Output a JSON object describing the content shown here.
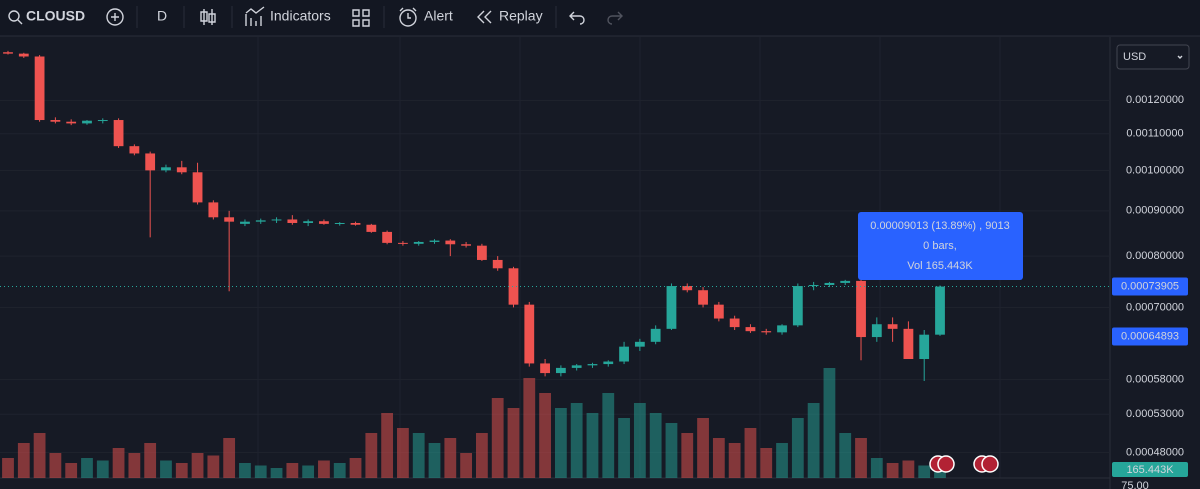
{
  "toolbar": {
    "symbol": "CLOUSD",
    "interval": "D",
    "indicators": "Indicators",
    "alert": "Alert",
    "replay": "Replay"
  },
  "currency": "USD",
  "chart": {
    "type": "candlestick",
    "log_scale": true,
    "ylim": [
      0.000449,
      0.001415
    ],
    "yticks": [
      {
        "value": 0.0012,
        "label": "0.00120000"
      },
      {
        "value": 0.0011,
        "label": "0.00110000"
      },
      {
        "value": 0.001,
        "label": "0.00100000"
      },
      {
        "value": 0.0009,
        "label": "0.00090000"
      },
      {
        "value": 0.0008,
        "label": "0.00080000"
      },
      {
        "value": 0.0007,
        "label": "0.00070000"
      },
      {
        "value": 0.00058,
        "label": "0.00058000"
      },
      {
        "value": 0.00053,
        "label": "0.00053000"
      },
      {
        "value": 0.00048,
        "label": "0.00048000"
      }
    ],
    "up_color": "#26a69a",
    "down_color": "#ef5350",
    "open": [
      0.00136,
      0.001355,
      0.001345,
      0.00114,
      0.001135,
      0.00113,
      0.001138,
      0.00114,
      0.001065,
      0.001045,
      0.001,
      0.001008,
      0.000995,
      0.00092,
      0.000885,
      0.00087,
      0.000875,
      0.000878,
      0.00088,
      0.000872,
      0.000876,
      0.00087,
      0.000872,
      0.000868,
      0.000852,
      0.000828,
      0.000826,
      0.00083,
      0.000833,
      0.000825,
      0.000822,
      0.000792,
      0.000775,
      0.000705,
      0.000605,
      0.00059,
      0.000598,
      0.000602,
      0.000604,
      0.000608,
      0.000632,
      0.00064,
      0.000662,
      0.00074,
      0.000732,
      0.000705,
      0.00068,
      0.000665,
      0.000658,
      0.000656,
      0.000668,
      0.00074,
      0.000742,
      0.000746,
      0.00075,
      0.000648,
      0.00067,
      0.000662,
      0.000612,
      0.000652
    ],
    "high": [
      0.001365,
      0.001358,
      0.00135,
      0.001148,
      0.001142,
      0.00114,
      0.001145,
      0.001145,
      0.00107,
      0.00105,
      0.001015,
      0.001025,
      0.00102,
      0.000925,
      0.0009,
      0.00088,
      0.000882,
      0.000885,
      0.00089,
      0.00088,
      0.00088,
      0.000874,
      0.000875,
      0.00087,
      0.000855,
      0.000832,
      0.000832,
      0.000836,
      0.000836,
      0.00083,
      0.000826,
      0.0008,
      0.000778,
      0.00071,
      0.000612,
      0.000602,
      0.000604,
      0.000606,
      0.00061,
      0.00064,
      0.000645,
      0.000668,
      0.000745,
      0.000745,
      0.000738,
      0.00071,
      0.000685,
      0.00067,
      0.000662,
      0.00067,
      0.000745,
      0.000748,
      0.000748,
      0.000752,
      0.000752,
      0.000682,
      0.000682,
      0.000675,
      0.00066,
      0.000741
    ],
    "low": [
      0.001352,
      0.00134,
      0.001135,
      0.00113,
      0.001125,
      0.001126,
      0.00113,
      0.00106,
      0.00104,
      0.00084,
      0.000995,
      0.00099,
      0.000915,
      0.00088,
      0.00073,
      0.000865,
      0.00087,
      0.000872,
      0.000868,
      0.000865,
      0.000868,
      0.000866,
      0.000866,
      0.00085,
      0.000825,
      0.000822,
      0.000822,
      0.000826,
      0.0008,
      0.000818,
      0.00079,
      0.00077,
      0.0007,
      0.0006,
      0.000585,
      0.000585,
      0.000594,
      0.000598,
      0.0006,
      0.000604,
      0.000625,
      0.000636,
      0.00066,
      0.000728,
      0.0007,
      0.000675,
      0.00066,
      0.000655,
      0.000652,
      0.000652,
      0.000665,
      0.000732,
      0.000738,
      0.000742,
      0.00061,
      0.00064,
      0.00064,
      0.000612,
      0.000578,
      0.00065
    ],
    "close": [
      0.001355,
      0.001345,
      0.00114,
      0.001135,
      0.00113,
      0.001138,
      0.00114,
      0.001065,
      0.001045,
      0.001,
      0.001008,
      0.000995,
      0.00092,
      0.000885,
      0.000875,
      0.000875,
      0.000878,
      0.00088,
      0.000872,
      0.000876,
      0.00087,
      0.000872,
      0.000868,
      0.000852,
      0.000828,
      0.000826,
      0.00083,
      0.000833,
      0.000825,
      0.000822,
      0.000792,
      0.000775,
      0.000705,
      0.000605,
      0.00059,
      0.000598,
      0.000602,
      0.000604,
      0.000608,
      0.000632,
      0.00064,
      0.000662,
      0.00074,
      0.000732,
      0.000705,
      0.00068,
      0.000665,
      0.000658,
      0.000656,
      0.000668,
      0.00074,
      0.000742,
      0.000746,
      0.00075,
      0.000648,
      0.00067,
      0.000662,
      0.000612,
      0.000652,
      0.000739
    ],
    "volume": [
      400,
      700,
      900,
      500,
      300,
      400,
      350,
      600,
      500,
      700,
      350,
      300,
      500,
      450,
      800,
      300,
      250,
      200,
      300,
      250,
      350,
      300,
      400,
      900,
      1300,
      1000,
      900,
      700,
      800,
      500,
      900,
      1600,
      1400,
      2000,
      1700,
      1400,
      1500,
      1300,
      1700,
      1200,
      1500,
      1300,
      1100,
      900,
      1200,
      800,
      700,
      1000,
      600,
      700,
      1200,
      1500,
      2200,
      900,
      800,
      400,
      300,
      350,
      250,
      165.443
    ],
    "last_price": {
      "value": 0.00073905,
      "label": "0.00073905"
    },
    "crosshair_price": {
      "value": 0.00064893,
      "label": "0.00064893"
    },
    "volume_label": "165.443K",
    "volume_axis_label": "75.00",
    "tooltip": [
      "0.00009013 (13.89%) , 9013",
      "0 bars,",
      "Vol 165.443K"
    ]
  }
}
